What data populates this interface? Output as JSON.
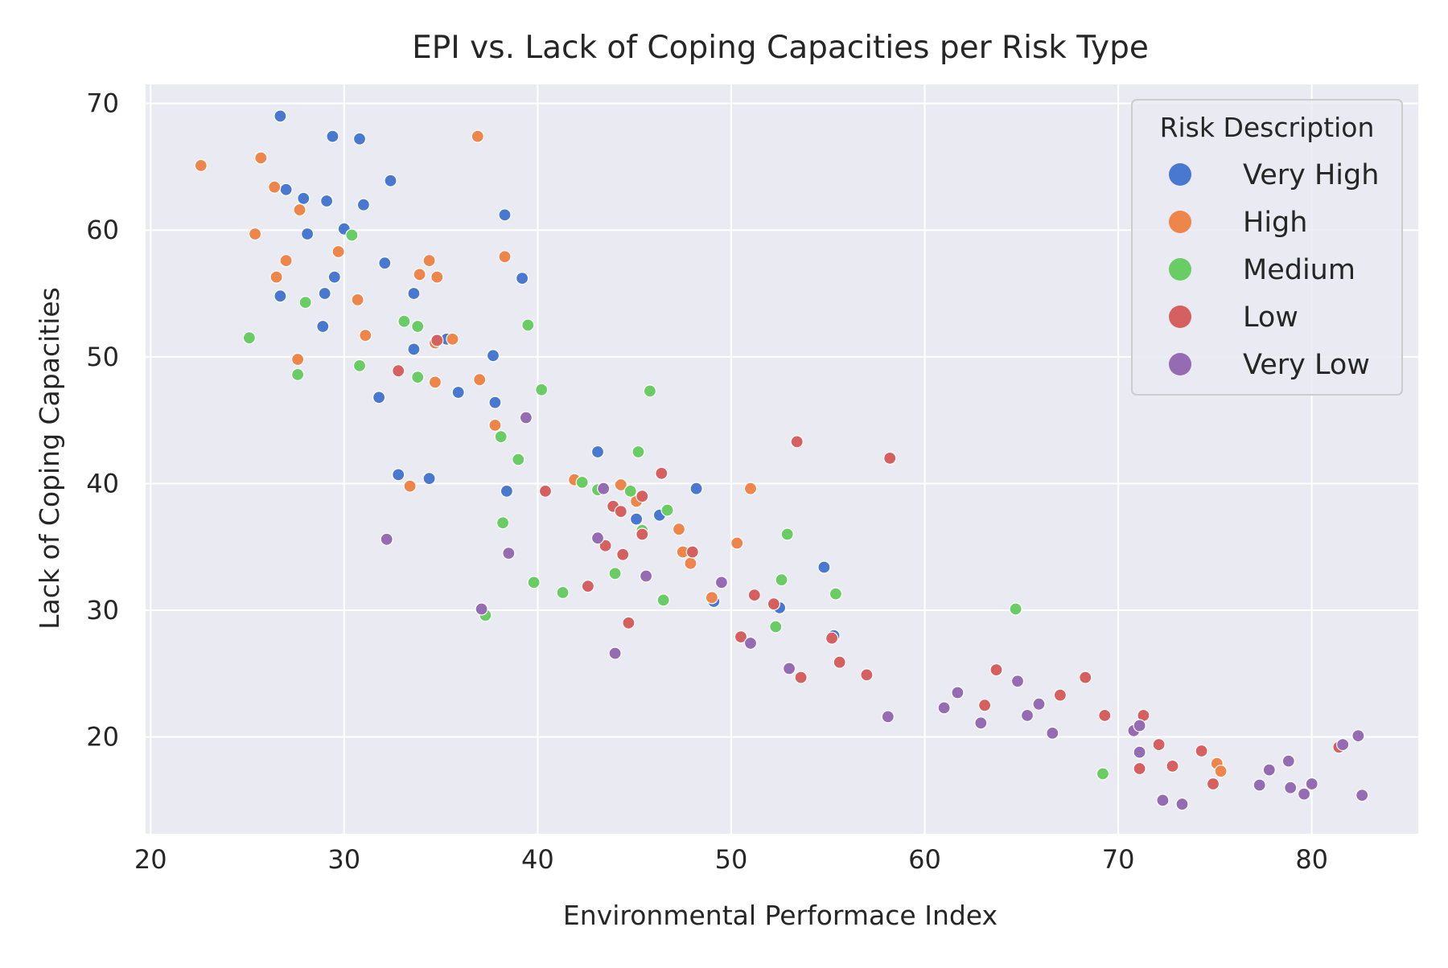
{
  "chart_data": {
    "type": "scatter",
    "title": "EPI vs. Lack of Coping Capacities per Risk Type",
    "xlabel": "Environmental Performace Index",
    "ylabel": "Lack of Coping Capacities",
    "xlim": [
      19.7,
      85.5
    ],
    "ylim": [
      12.3,
      71.5
    ],
    "xticks": [
      20,
      30,
      40,
      50,
      60,
      70,
      80
    ],
    "yticks": [
      20,
      30,
      40,
      50,
      60,
      70
    ],
    "grid": true,
    "legend": {
      "title": "Risk Description",
      "position": "top-right"
    },
    "series": [
      {
        "name": "Very High",
        "color": "#4878d0",
        "points": [
          [
            26.7,
            69.0
          ],
          [
            29.4,
            67.4
          ],
          [
            30.8,
            67.2
          ],
          [
            27.0,
            63.2
          ],
          [
            27.9,
            62.5
          ],
          [
            29.1,
            62.3
          ],
          [
            31.0,
            62.0
          ],
          [
            32.4,
            63.9
          ],
          [
            30.0,
            60.1
          ],
          [
            28.1,
            59.7
          ],
          [
            32.1,
            57.4
          ],
          [
            29.5,
            56.3
          ],
          [
            26.7,
            54.8
          ],
          [
            29.0,
            55.0
          ],
          [
            33.6,
            55.0
          ],
          [
            28.9,
            52.4
          ],
          [
            33.6,
            50.6
          ],
          [
            35.3,
            51.4
          ],
          [
            37.7,
            50.1
          ],
          [
            38.3,
            61.2
          ],
          [
            39.2,
            56.2
          ],
          [
            31.8,
            46.8
          ],
          [
            35.9,
            47.2
          ],
          [
            37.8,
            46.4
          ],
          [
            32.8,
            40.7
          ],
          [
            34.4,
            40.4
          ],
          [
            38.4,
            39.4
          ],
          [
            43.1,
            42.5
          ],
          [
            48.2,
            39.6
          ],
          [
            45.1,
            37.2
          ],
          [
            46.3,
            37.5
          ],
          [
            49.1,
            30.7
          ],
          [
            52.5,
            30.2
          ],
          [
            54.8,
            33.4
          ],
          [
            55.3,
            28.0
          ]
        ]
      },
      {
        "name": "High",
        "color": "#ee854a",
        "points": [
          [
            22.6,
            65.1
          ],
          [
            25.7,
            65.7
          ],
          [
            26.4,
            63.4
          ],
          [
            27.7,
            61.6
          ],
          [
            25.4,
            59.7
          ],
          [
            29.7,
            58.3
          ],
          [
            27.0,
            57.6
          ],
          [
            26.5,
            56.3
          ],
          [
            34.4,
            57.6
          ],
          [
            33.9,
            56.5
          ],
          [
            34.8,
            56.3
          ],
          [
            38.3,
            57.9
          ],
          [
            36.9,
            67.4
          ],
          [
            30.7,
            54.5
          ],
          [
            31.1,
            51.7
          ],
          [
            35.6,
            51.4
          ],
          [
            34.7,
            51.1
          ],
          [
            27.6,
            49.8
          ],
          [
            34.7,
            48.0
          ],
          [
            37.0,
            48.2
          ],
          [
            37.8,
            44.6
          ],
          [
            33.4,
            39.8
          ],
          [
            41.9,
            40.3
          ],
          [
            44.3,
            39.9
          ],
          [
            45.1,
            38.6
          ],
          [
            51.0,
            39.6
          ],
          [
            47.3,
            36.4
          ],
          [
            47.5,
            34.6
          ],
          [
            47.9,
            33.7
          ],
          [
            50.3,
            35.3
          ],
          [
            49.0,
            31.0
          ],
          [
            75.1,
            17.9
          ],
          [
            75.3,
            17.3
          ]
        ]
      },
      {
        "name": "Medium",
        "color": "#6acc64",
        "points": [
          [
            30.4,
            59.6
          ],
          [
            28.0,
            54.3
          ],
          [
            25.1,
            51.5
          ],
          [
            33.1,
            52.8
          ],
          [
            33.8,
            52.4
          ],
          [
            30.8,
            49.3
          ],
          [
            27.6,
            48.6
          ],
          [
            33.8,
            48.4
          ],
          [
            39.5,
            52.5
          ],
          [
            40.2,
            47.4
          ],
          [
            45.8,
            47.3
          ],
          [
            38.1,
            43.7
          ],
          [
            39.0,
            41.9
          ],
          [
            45.2,
            42.5
          ],
          [
            42.3,
            40.1
          ],
          [
            43.1,
            39.5
          ],
          [
            44.8,
            39.4
          ],
          [
            46.7,
            37.9
          ],
          [
            45.4,
            36.3
          ],
          [
            38.2,
            36.9
          ],
          [
            39.8,
            32.2
          ],
          [
            41.3,
            31.4
          ],
          [
            44.0,
            32.9
          ],
          [
            46.5,
            30.8
          ],
          [
            37.3,
            29.6
          ],
          [
            52.6,
            32.4
          ],
          [
            52.9,
            36.0
          ],
          [
            55.4,
            31.3
          ],
          [
            52.3,
            28.7
          ],
          [
            64.7,
            30.1
          ],
          [
            69.2,
            17.1
          ]
        ]
      },
      {
        "name": "Low",
        "color": "#d65f5f",
        "points": [
          [
            32.8,
            48.9
          ],
          [
            34.8,
            51.3
          ],
          [
            40.4,
            39.4
          ],
          [
            43.9,
            38.2
          ],
          [
            44.3,
            37.8
          ],
          [
            45.4,
            39.0
          ],
          [
            46.4,
            40.8
          ],
          [
            43.5,
            35.1
          ],
          [
            44.4,
            34.4
          ],
          [
            45.4,
            36.0
          ],
          [
            48.0,
            34.6
          ],
          [
            42.6,
            31.9
          ],
          [
            44.7,
            29.0
          ],
          [
            53.4,
            43.3
          ],
          [
            58.2,
            42.0
          ],
          [
            51.2,
            31.2
          ],
          [
            52.2,
            30.5
          ],
          [
            50.5,
            27.9
          ],
          [
            55.2,
            27.8
          ],
          [
            55.6,
            25.9
          ],
          [
            53.6,
            24.7
          ],
          [
            57.0,
            24.9
          ],
          [
            63.1,
            22.5
          ],
          [
            63.7,
            25.3
          ],
          [
            67.0,
            23.3
          ],
          [
            68.3,
            24.7
          ],
          [
            69.3,
            21.7
          ],
          [
            71.3,
            21.7
          ],
          [
            71.1,
            17.5
          ],
          [
            72.1,
            19.4
          ],
          [
            72.8,
            17.7
          ],
          [
            74.3,
            18.9
          ],
          [
            74.9,
            16.3
          ],
          [
            81.4,
            19.2
          ]
        ]
      },
      {
        "name": "Very Low",
        "color": "#956cb4",
        "points": [
          [
            39.4,
            45.2
          ],
          [
            43.4,
            39.6
          ],
          [
            43.1,
            35.7
          ],
          [
            38.5,
            34.5
          ],
          [
            45.6,
            32.7
          ],
          [
            37.1,
            30.1
          ],
          [
            32.2,
            35.6
          ],
          [
            44.0,
            26.6
          ],
          [
            49.5,
            32.2
          ],
          [
            51.0,
            27.4
          ],
          [
            53.0,
            25.4
          ],
          [
            58.1,
            21.6
          ],
          [
            61.0,
            22.3
          ],
          [
            61.7,
            23.5
          ],
          [
            62.9,
            21.1
          ],
          [
            64.8,
            24.4
          ],
          [
            65.3,
            21.7
          ],
          [
            65.9,
            22.6
          ],
          [
            66.6,
            20.3
          ],
          [
            70.8,
            20.5
          ],
          [
            71.1,
            20.9
          ],
          [
            71.1,
            18.8
          ],
          [
            72.3,
            15.0
          ],
          [
            73.3,
            14.7
          ],
          [
            77.3,
            16.2
          ],
          [
            77.8,
            17.4
          ],
          [
            78.8,
            18.1
          ],
          [
            78.9,
            16.0
          ],
          [
            79.6,
            15.5
          ],
          [
            80.0,
            16.3
          ],
          [
            81.6,
            19.4
          ],
          [
            82.4,
            20.1
          ],
          [
            82.6,
            15.4
          ]
        ]
      }
    ]
  }
}
